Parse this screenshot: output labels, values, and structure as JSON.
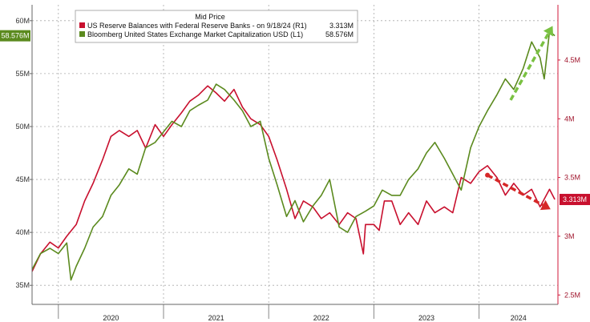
{
  "chart_data": {
    "type": "line",
    "legend": {
      "title": "Mid Price",
      "placement": "top-center",
      "entries": [
        {
          "label": "US Reserve Balances with Federal Reserve Banks -  on 9/18/24  (R1)",
          "value": "3.313M",
          "color": "#c8102e"
        },
        {
          "label": "Bloomberg United States Exchange Market Capitalization USD  (L1)",
          "value": "58.576M",
          "color": "#5b8a1e"
        }
      ]
    },
    "x_ticks": [
      "2020",
      "2021",
      "2022",
      "2023",
      "2024"
    ],
    "x_domain": [
      2019.75,
      2024.75
    ],
    "left_axis": {
      "ticks": [
        "35M",
        "40M",
        "45M",
        "50M",
        "55M",
        "60M"
      ],
      "tick_values": [
        35,
        40,
        45,
        50,
        55,
        60
      ],
      "range": [
        33.2,
        61.5
      ]
    },
    "right_axis": {
      "ticks": [
        "2.5M",
        "3M",
        "3.5M",
        "4M",
        "4.5M"
      ],
      "tick_values": [
        2.5,
        3.0,
        3.5,
        4.0,
        4.5
      ],
      "range": [
        2.42,
        4.97
      ]
    },
    "last_value_labels": {
      "left": "58.576M",
      "right": "3.313M"
    },
    "grid": true,
    "series": [
      {
        "name": "US Reserve Balances with Federal Reserve Banks",
        "axis": "right",
        "color": "#c8102e",
        "points": [
          [
            2019.75,
            2.7
          ],
          [
            2019.83,
            2.85
          ],
          [
            2019.92,
            2.95
          ],
          [
            2020.0,
            2.9
          ],
          [
            2020.08,
            3.0
          ],
          [
            2020.17,
            3.1
          ],
          [
            2020.25,
            3.3
          ],
          [
            2020.33,
            3.45
          ],
          [
            2020.42,
            3.65
          ],
          [
            2020.5,
            3.85
          ],
          [
            2020.58,
            3.9
          ],
          [
            2020.67,
            3.85
          ],
          [
            2020.75,
            3.9
          ],
          [
            2020.83,
            3.75
          ],
          [
            2020.92,
            3.95
          ],
          [
            2021.0,
            3.85
          ],
          [
            2021.08,
            3.95
          ],
          [
            2021.17,
            4.05
          ],
          [
            2021.25,
            4.15
          ],
          [
            2021.33,
            4.2
          ],
          [
            2021.42,
            4.28
          ],
          [
            2021.5,
            4.22
          ],
          [
            2021.58,
            4.15
          ],
          [
            2021.67,
            4.25
          ],
          [
            2021.75,
            4.1
          ],
          [
            2021.83,
            4.0
          ],
          [
            2021.92,
            3.95
          ],
          [
            2022.0,
            3.85
          ],
          [
            2022.08,
            3.65
          ],
          [
            2022.17,
            3.4
          ],
          [
            2022.25,
            3.15
          ],
          [
            2022.33,
            3.3
          ],
          [
            2022.42,
            3.25
          ],
          [
            2022.5,
            3.15
          ],
          [
            2022.58,
            3.2
          ],
          [
            2022.67,
            3.1
          ],
          [
            2022.75,
            3.2
          ],
          [
            2022.83,
            3.15
          ],
          [
            2022.9,
            2.85
          ],
          [
            2022.92,
            3.1
          ],
          [
            2023.0,
            3.1
          ],
          [
            2023.05,
            3.05
          ],
          [
            2023.1,
            3.3
          ],
          [
            2023.17,
            3.3
          ],
          [
            2023.25,
            3.1
          ],
          [
            2023.33,
            3.2
          ],
          [
            2023.42,
            3.1
          ],
          [
            2023.5,
            3.3
          ],
          [
            2023.58,
            3.2
          ],
          [
            2023.67,
            3.25
          ],
          [
            2023.75,
            3.2
          ],
          [
            2023.83,
            3.5
          ],
          [
            2023.92,
            3.45
          ],
          [
            2024.0,
            3.55
          ],
          [
            2024.08,
            3.6
          ],
          [
            2024.17,
            3.5
          ],
          [
            2024.25,
            3.35
          ],
          [
            2024.33,
            3.45
          ],
          [
            2024.42,
            3.35
          ],
          [
            2024.5,
            3.4
          ],
          [
            2024.58,
            3.25
          ],
          [
            2024.67,
            3.4
          ],
          [
            2024.72,
            3.313
          ]
        ]
      },
      {
        "name": "Bloomberg United States Exchange Market Capitalization USD",
        "axis": "left",
        "color": "#5b8a1e",
        "points": [
          [
            2019.75,
            36.5
          ],
          [
            2019.83,
            38.0
          ],
          [
            2019.92,
            38.5
          ],
          [
            2020.0,
            38.0
          ],
          [
            2020.08,
            39.0
          ],
          [
            2020.12,
            35.5
          ],
          [
            2020.17,
            36.8
          ],
          [
            2020.25,
            38.5
          ],
          [
            2020.33,
            40.5
          ],
          [
            2020.42,
            41.5
          ],
          [
            2020.5,
            43.5
          ],
          [
            2020.58,
            44.5
          ],
          [
            2020.67,
            46.0
          ],
          [
            2020.75,
            45.5
          ],
          [
            2020.83,
            48.0
          ],
          [
            2020.92,
            48.5
          ],
          [
            2021.0,
            49.5
          ],
          [
            2021.08,
            50.5
          ],
          [
            2021.17,
            50.0
          ],
          [
            2021.25,
            51.5
          ],
          [
            2021.33,
            52.0
          ],
          [
            2021.42,
            52.5
          ],
          [
            2021.5,
            54.0
          ],
          [
            2021.58,
            53.5
          ],
          [
            2021.67,
            52.5
          ],
          [
            2021.75,
            51.5
          ],
          [
            2021.83,
            50.0
          ],
          [
            2021.92,
            50.5
          ],
          [
            2022.0,
            47.0
          ],
          [
            2022.08,
            44.5
          ],
          [
            2022.17,
            41.5
          ],
          [
            2022.25,
            43.0
          ],
          [
            2022.33,
            41.0
          ],
          [
            2022.42,
            42.5
          ],
          [
            2022.5,
            43.5
          ],
          [
            2022.58,
            45.0
          ],
          [
            2022.67,
            40.5
          ],
          [
            2022.75,
            40.0
          ],
          [
            2022.83,
            41.5
          ],
          [
            2022.92,
            42.0
          ],
          [
            2023.0,
            42.5
          ],
          [
            2023.08,
            44.0
          ],
          [
            2023.17,
            43.5
          ],
          [
            2023.25,
            43.5
          ],
          [
            2023.33,
            45.0
          ],
          [
            2023.42,
            46.0
          ],
          [
            2023.5,
            47.5
          ],
          [
            2023.58,
            48.5
          ],
          [
            2023.67,
            47.0
          ],
          [
            2023.75,
            45.5
          ],
          [
            2023.83,
            44.0
          ],
          [
            2023.92,
            48.0
          ],
          [
            2024.0,
            50.0
          ],
          [
            2024.08,
            51.5
          ],
          [
            2024.17,
            53.0
          ],
          [
            2024.25,
            54.5
          ],
          [
            2024.33,
            53.5
          ],
          [
            2024.42,
            55.5
          ],
          [
            2024.5,
            58.0
          ],
          [
            2024.58,
            56.5
          ],
          [
            2024.62,
            54.5
          ],
          [
            2024.67,
            59.0
          ],
          [
            2024.72,
            58.576
          ]
        ]
      }
    ],
    "annotations": [
      {
        "type": "arrow",
        "axis": "right",
        "from": [
          2024.08,
          3.52
        ],
        "to": [
          2024.68,
          3.23
        ],
        "color": "#d62828",
        "style": "dashed"
      },
      {
        "type": "arrow",
        "axis": "left",
        "from": [
          2024.3,
          52.5
        ],
        "to": [
          2024.7,
          59.5
        ],
        "color": "#7ac142",
        "style": "dashed"
      }
    ]
  }
}
